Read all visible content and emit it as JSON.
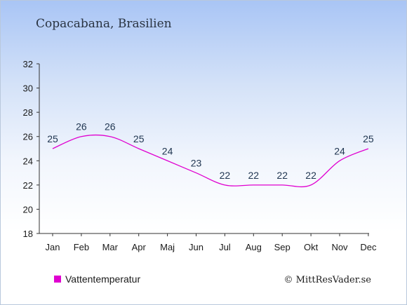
{
  "chart_data": {
    "type": "line",
    "title": "Copacabana, Brasilien",
    "categories": [
      "Jan",
      "Feb",
      "Mar",
      "Apr",
      "Maj",
      "Jun",
      "Jul",
      "Aug",
      "Sep",
      "Okt",
      "Nov",
      "Dec"
    ],
    "series": [
      {
        "name": "Vattentemperatur",
        "values": [
          25,
          26,
          26,
          25,
          24,
          23,
          22,
          22,
          22,
          22,
          24,
          25
        ],
        "color": "#e000d0"
      }
    ],
    "yticks": [
      18,
      20,
      22,
      24,
      26,
      28,
      30,
      32
    ],
    "ylim": [
      18,
      32
    ],
    "xlabel": "",
    "ylabel": "",
    "grid": false,
    "legend": "bottom-left"
  },
  "copyright": "© MittResVader.se"
}
